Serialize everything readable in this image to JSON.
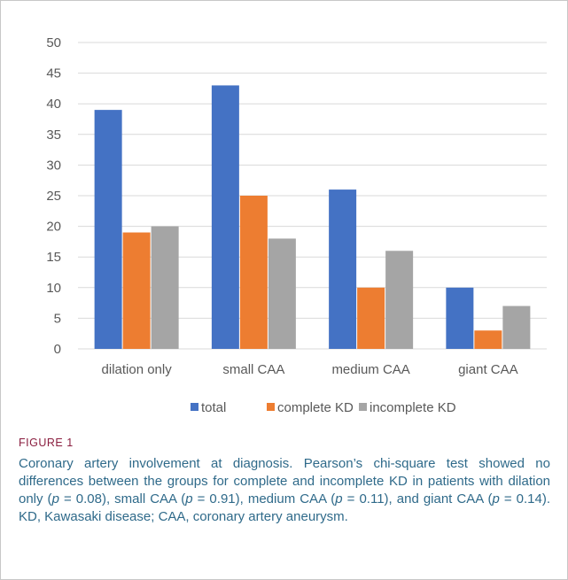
{
  "chart_data": {
    "type": "bar",
    "categories": [
      "dilation only",
      "small CAA",
      "medium CAA",
      "giant CAA"
    ],
    "series": [
      {
        "name": "total",
        "values": [
          39,
          43,
          26,
          10
        ],
        "color": "#4472C4"
      },
      {
        "name": "complete KD",
        "values": [
          19,
          25,
          10,
          3
        ],
        "color": "#ED7D31"
      },
      {
        "name": "incomplete KD",
        "values": [
          20,
          18,
          16,
          7
        ],
        "color": "#A5A5A5"
      }
    ],
    "yticks": [
      0,
      5,
      10,
      15,
      20,
      25,
      30,
      35,
      40,
      45,
      50
    ],
    "ylim": [
      0,
      50
    ],
    "grid": true,
    "legend": "bottom"
  },
  "caption": {
    "label": "FIGURE 1",
    "parts": [
      "Coronary artery involvement at diagnosis. Pearson’s chi-square test showed no differences between the groups for complete and incomplete KD in patients with dilation only (",
      "p",
      " = 0.08), small CAA (",
      "p",
      " = 0.91), medium CAA (",
      "p",
      " = 0.11), and giant CAA (",
      "p",
      " = 0.14). KD, Kawasaki disease; CAA, coronary artery aneurysm."
    ]
  }
}
